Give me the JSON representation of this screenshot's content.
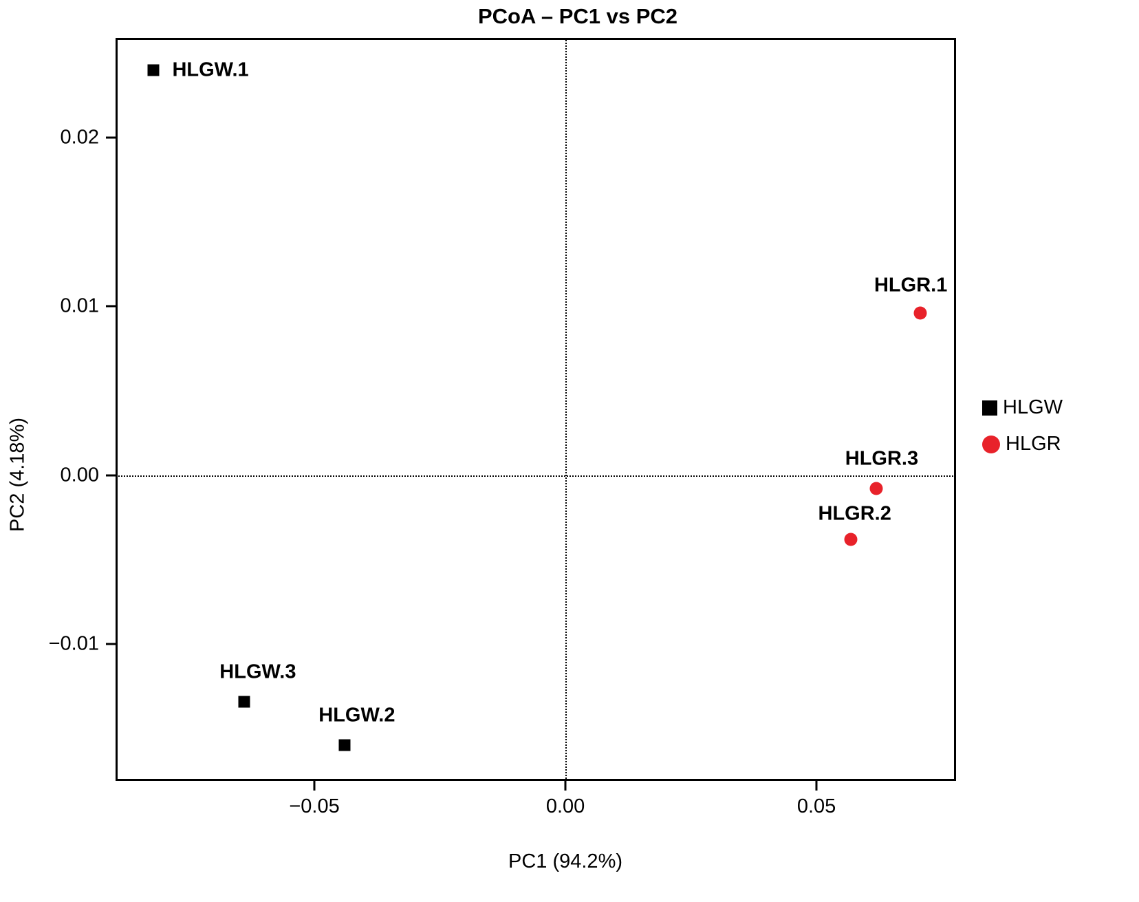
{
  "chart_data": {
    "type": "scatter",
    "title": "PCoA – PC1 vs PC2",
    "xlabel": "PC1 (94.2%)",
    "ylabel": "PC2 (4.18%)",
    "xlim": [
      -0.0896,
      0.0778
    ],
    "ylim": [
      -0.0181,
      0.0259
    ],
    "grid": false,
    "reference_lines": {
      "x": 0.0,
      "y": 0.0,
      "style": "dotted"
    },
    "x_ticks": [
      {
        "value": -0.05,
        "label": "−0.05"
      },
      {
        "value": 0.0,
        "label": "0.00"
      },
      {
        "value": 0.05,
        "label": "0.05"
      }
    ],
    "y_ticks": [
      {
        "value": 0.02,
        "label": "0.02"
      },
      {
        "value": 0.01,
        "label": "0.01"
      },
      {
        "value": 0.0,
        "label": "0.00"
      },
      {
        "value": -0.01,
        "label": "−0.01"
      }
    ],
    "legend": {
      "position": "right-outside",
      "items": [
        {
          "label": "HLGW",
          "marker": "square",
          "color": "#000000"
        },
        {
          "label": "HLGR",
          "marker": "circle",
          "color": "#e8222a"
        }
      ]
    },
    "series": [
      {
        "name": "HLGW",
        "marker": "square",
        "color": "#000000",
        "points": [
          {
            "label": "HLGW.1",
            "x": -0.082,
            "y": 0.024,
            "label_dx": 27,
            "label_dy": 0,
            "label_align": "left"
          },
          {
            "label": "HLGW.2",
            "x": -0.044,
            "y": -0.016,
            "label_dx": 18,
            "label_dy": -43,
            "label_align": "center"
          },
          {
            "label": "HLGW.3",
            "x": -0.064,
            "y": -0.0134,
            "label_dx": 20,
            "label_dy": -43,
            "label_align": "center"
          }
        ]
      },
      {
        "name": "HLGR",
        "marker": "circle",
        "color": "#e8222a",
        "points": [
          {
            "label": "HLGR.1",
            "x": 0.0707,
            "y": 0.0096,
            "label_dx": -14,
            "label_dy": -40,
            "label_align": "center"
          },
          {
            "label": "HLGR.2",
            "x": 0.0568,
            "y": -0.0038,
            "label_dx": 6,
            "label_dy": -37,
            "label_align": "center"
          },
          {
            "label": "HLGR.3",
            "x": 0.0619,
            "y": -0.0008,
            "label_dx": 8,
            "label_dy": -43,
            "label_align": "center"
          }
        ]
      }
    ]
  }
}
